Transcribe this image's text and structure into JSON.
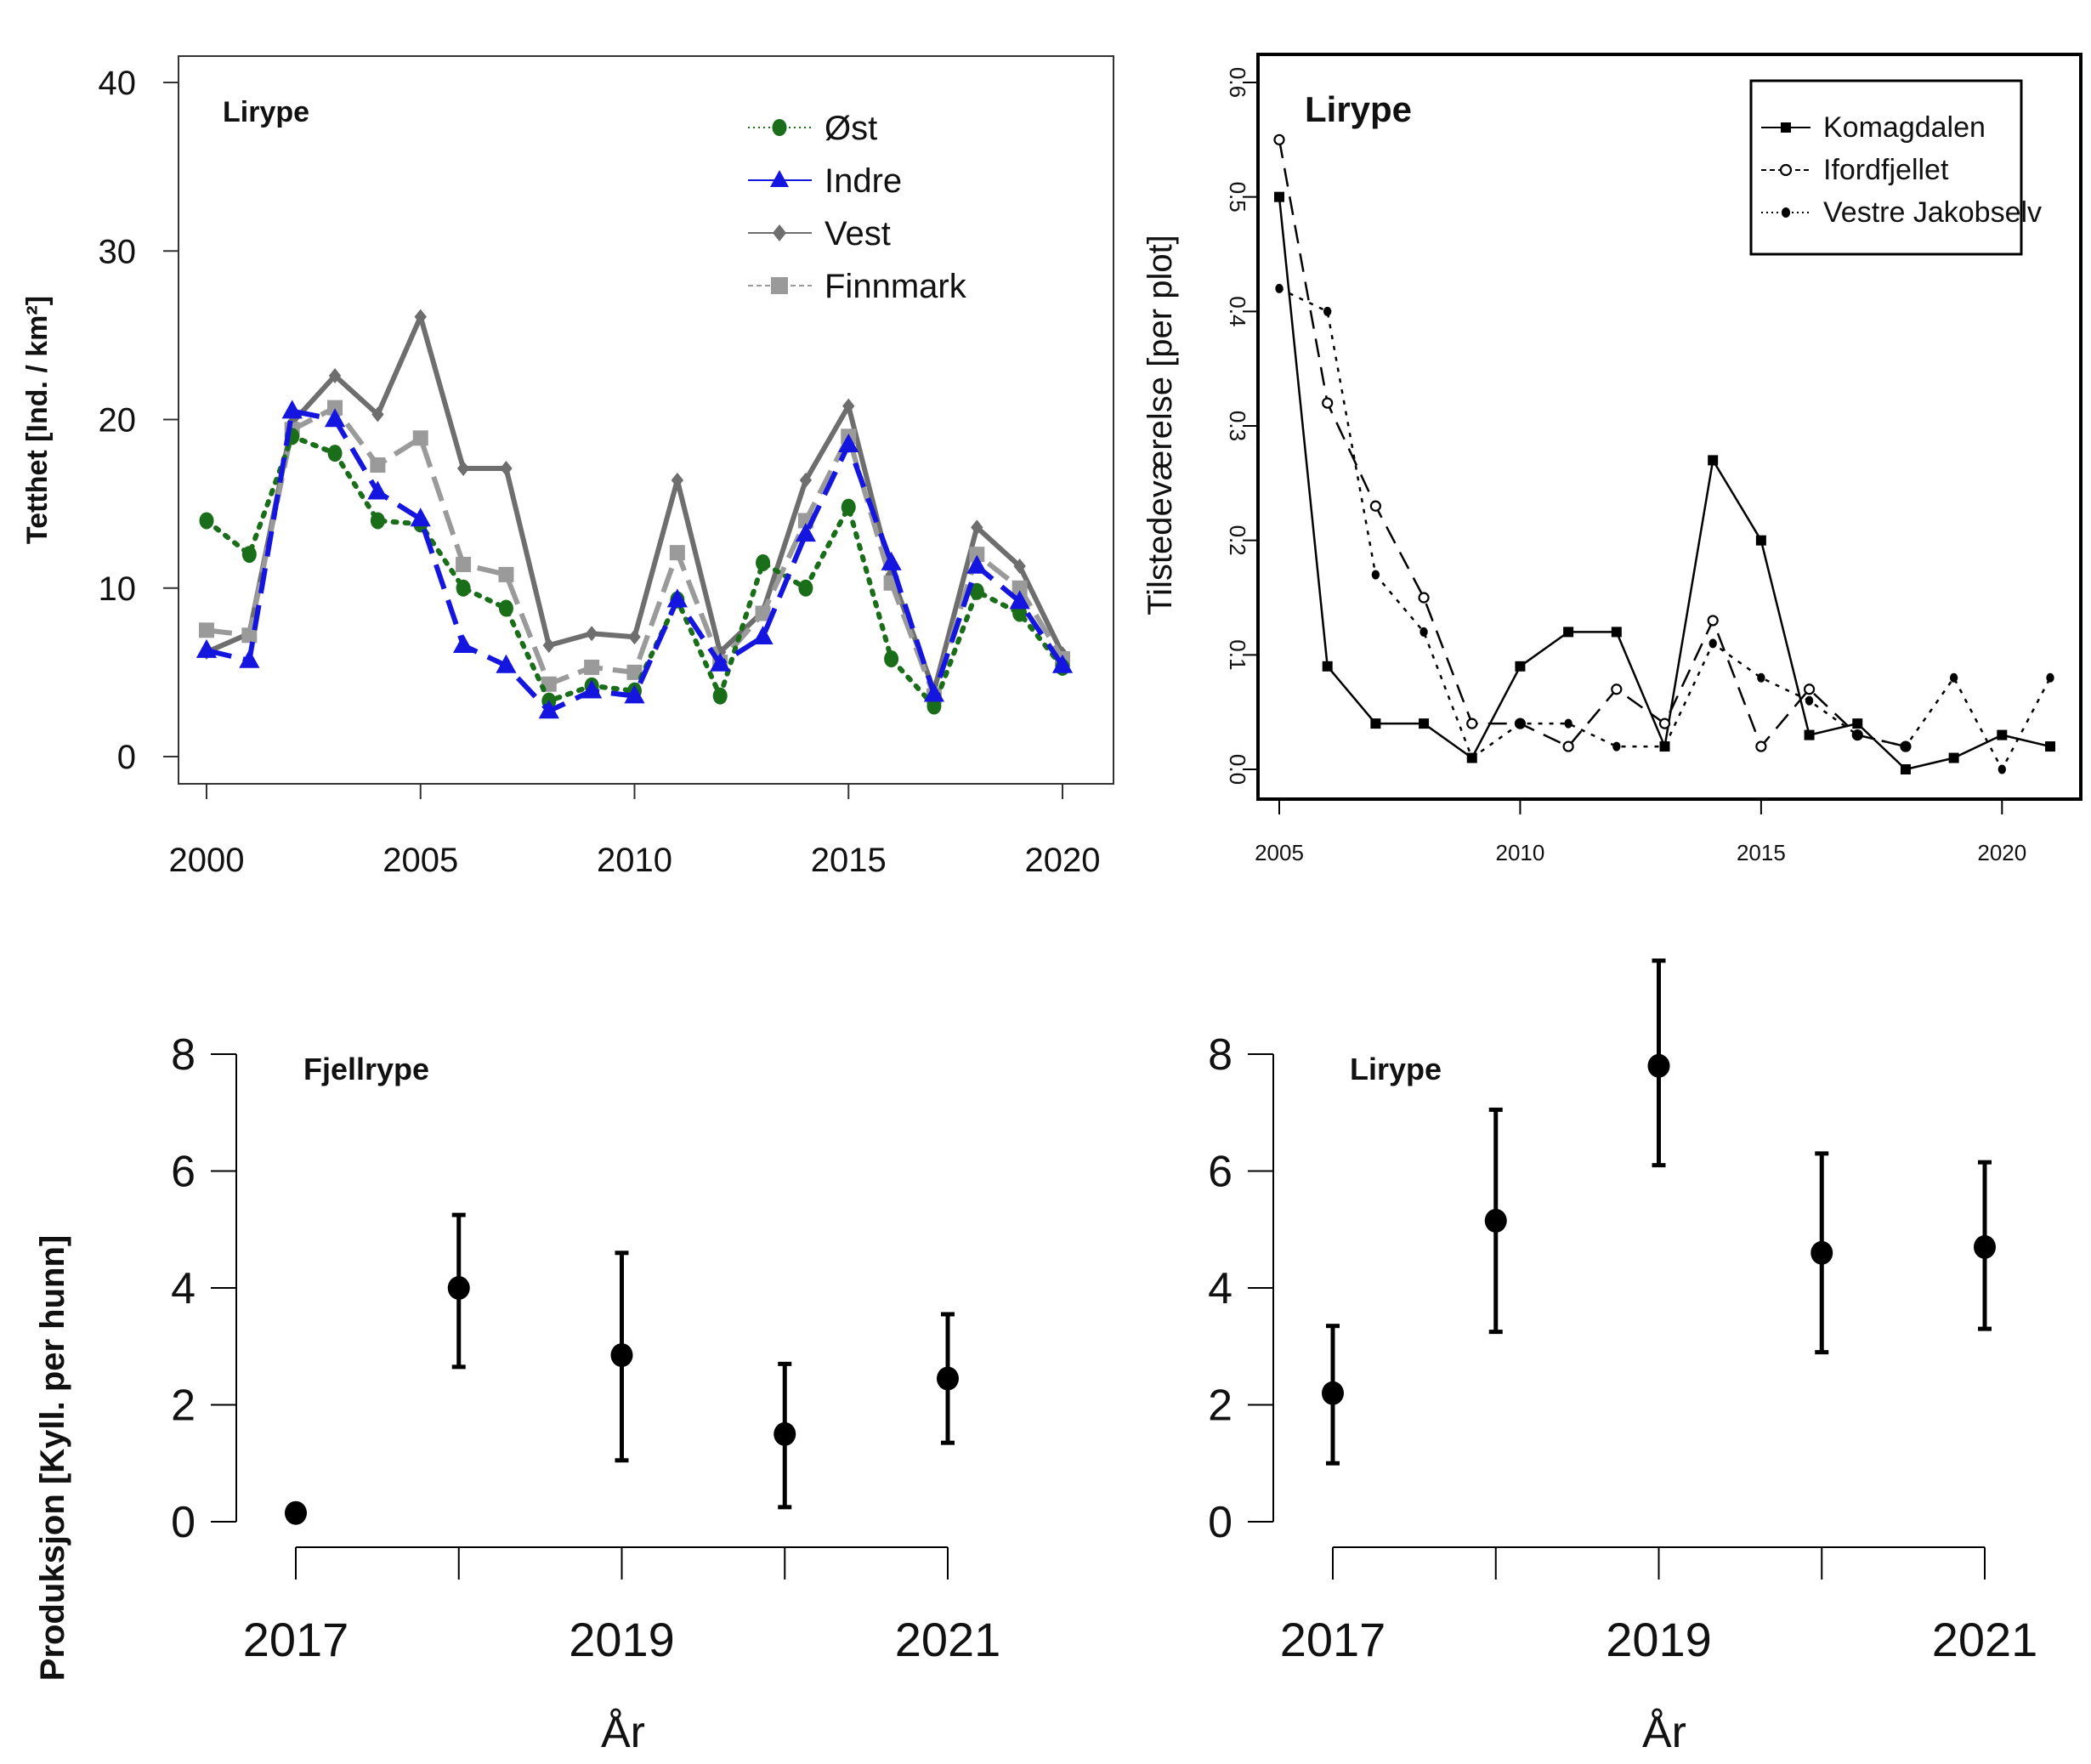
{
  "chart_data": [
    {
      "type": "line",
      "title": "Lirype",
      "xlabel": "",
      "ylabel": "Tetthet [Ind. / km²]",
      "xlim": [
        2000,
        2020
      ],
      "ylim": [
        0,
        40
      ],
      "x_ticks": [
        "2000",
        "2005",
        "2010",
        "2015",
        "2020"
      ],
      "y_ticks": [
        "0",
        "10",
        "20",
        "30",
        "40"
      ],
      "legend_position": "top-right",
      "x": [
        2000,
        2001,
        2002,
        2003,
        2004,
        2005,
        2006,
        2007,
        2008,
        2009,
        2010,
        2011,
        2012,
        2013,
        2014,
        2015,
        2016,
        2017,
        2018,
        2019,
        2020
      ],
      "series": [
        {
          "name": "Øst",
          "color": "#1a6e1a",
          "marker": "circle",
          "values": [
            14.0,
            12.0,
            19.0,
            18.0,
            14.0,
            13.8,
            10.0,
            8.8,
            3.3,
            4.2,
            3.9,
            9.3,
            3.6,
            11.5,
            10.0,
            14.8,
            5.8,
            3.0,
            9.8,
            8.5,
            5.3
          ]
        },
        {
          "name": "Indre",
          "color": "#1515e0",
          "marker": "triangle",
          "values": [
            6.3,
            5.7,
            20.5,
            20.0,
            15.7,
            14.1,
            6.6,
            5.4,
            2.7,
            3.9,
            3.6,
            9.3,
            5.5,
            7.1,
            13.2,
            18.5,
            11.5,
            3.7,
            11.3,
            9.2,
            5.4
          ]
        },
        {
          "name": "Vest",
          "color": "#6e6e6e",
          "marker": "diamond",
          "values": [
            6.2,
            7.3,
            19.8,
            22.6,
            20.3,
            26.1,
            17.1,
            17.1,
            6.6,
            7.3,
            7.1,
            16.4,
            6.2,
            8.6,
            16.4,
            20.8,
            10.8,
            3.9,
            13.6,
            11.3,
            6.1
          ]
        },
        {
          "name": "Finnmark",
          "color": "#9a9a9a",
          "marker": "square",
          "values": [
            7.5,
            7.2,
            19.4,
            20.7,
            17.3,
            18.9,
            11.4,
            10.8,
            4.3,
            5.3,
            5.0,
            12.1,
            5.6,
            8.5,
            14.0,
            19.0,
            10.3,
            3.6,
            12.0,
            10.0,
            5.8
          ]
        }
      ]
    },
    {
      "type": "line",
      "title": "Lirype",
      "xlabel": "",
      "ylabel": "Tilstedeværelse [per plot]",
      "xlim": [
        2005,
        2021
      ],
      "ylim": [
        0,
        0.6
      ],
      "x_ticks": [
        "2005",
        "2010",
        "2015",
        "2020"
      ],
      "y_ticks": [
        "0.0",
        "0.1",
        "0.2",
        "0.3",
        "0.4",
        "0.5",
        "0.6"
      ],
      "legend_position": "top-right",
      "x": [
        2005,
        2006,
        2007,
        2008,
        2009,
        2010,
        2011,
        2012,
        2013,
        2014,
        2015,
        2016,
        2017,
        2018,
        2019,
        2020,
        2021
      ],
      "series": [
        {
          "name": "Komagdalen",
          "marker": "square-filled",
          "line": "solid",
          "values": [
            0.5,
            0.09,
            0.04,
            0.04,
            0.01,
            0.09,
            0.12,
            0.12,
            0.02,
            0.27,
            0.2,
            0.03,
            0.04,
            0.0,
            0.01,
            0.03,
            0.02
          ]
        },
        {
          "name": "Ifordfjellet",
          "marker": "circle-open",
          "line": "dashed",
          "values": [
            0.55,
            0.32,
            0.23,
            0.15,
            0.04,
            0.04,
            0.02,
            0.07,
            0.04,
            0.13,
            0.02,
            0.07,
            0.03,
            0.02,
            null,
            null,
            null
          ]
        },
        {
          "name": "Vestre Jakobselv",
          "marker": "circle-filled",
          "line": "dotted",
          "values": [
            0.42,
            0.4,
            0.17,
            0.12,
            0.01,
            0.04,
            0.04,
            0.02,
            0.02,
            0.11,
            0.08,
            0.06,
            0.03,
            0.02,
            0.08,
            0.0,
            0.08
          ]
        }
      ]
    },
    {
      "type": "scatter",
      "title": "Fjellrype",
      "xlabel": "År",
      "ylabel": "Produksjon [Kyll. per hunn]",
      "xlim": [
        2017,
        2021
      ],
      "ylim": [
        0,
        8
      ],
      "x_ticks": [
        "2017",
        "2019",
        "2021"
      ],
      "y_ticks": [
        "0",
        "2",
        "4",
        "6",
        "8"
      ],
      "points": [
        {
          "x": 2017,
          "y": 0.15,
          "lo": 0.05,
          "hi": 0.25
        },
        {
          "x": 2018,
          "y": 4.0,
          "lo": 2.65,
          "hi": 5.25
        },
        {
          "x": 2019,
          "y": 2.85,
          "lo": 1.05,
          "hi": 4.6
        },
        {
          "x": 2020,
          "y": 1.5,
          "lo": 0.25,
          "hi": 2.7
        },
        {
          "x": 2021,
          "y": 2.45,
          "lo": 1.35,
          "hi": 3.55
        }
      ]
    },
    {
      "type": "scatter",
      "title": "Lirype",
      "xlabel": "År",
      "ylabel": "",
      "xlim": [
        2017,
        2021
      ],
      "ylim": [
        0,
        8
      ],
      "x_ticks": [
        "2017",
        "2019",
        "2021"
      ],
      "y_ticks": [
        "0",
        "2",
        "4",
        "6",
        "8"
      ],
      "points": [
        {
          "x": 2017,
          "y": 2.2,
          "lo": 1.0,
          "hi": 3.35
        },
        {
          "x": 2018,
          "y": 5.15,
          "lo": 3.25,
          "hi": 7.05
        },
        {
          "x": 2019,
          "y": 7.8,
          "lo": 6.1,
          "hi": 9.6
        },
        {
          "x": 2020,
          "y": 4.6,
          "lo": 2.9,
          "hi": 6.3
        },
        {
          "x": 2021,
          "y": 4.7,
          "lo": 3.3,
          "hi": 6.15
        }
      ]
    }
  ]
}
